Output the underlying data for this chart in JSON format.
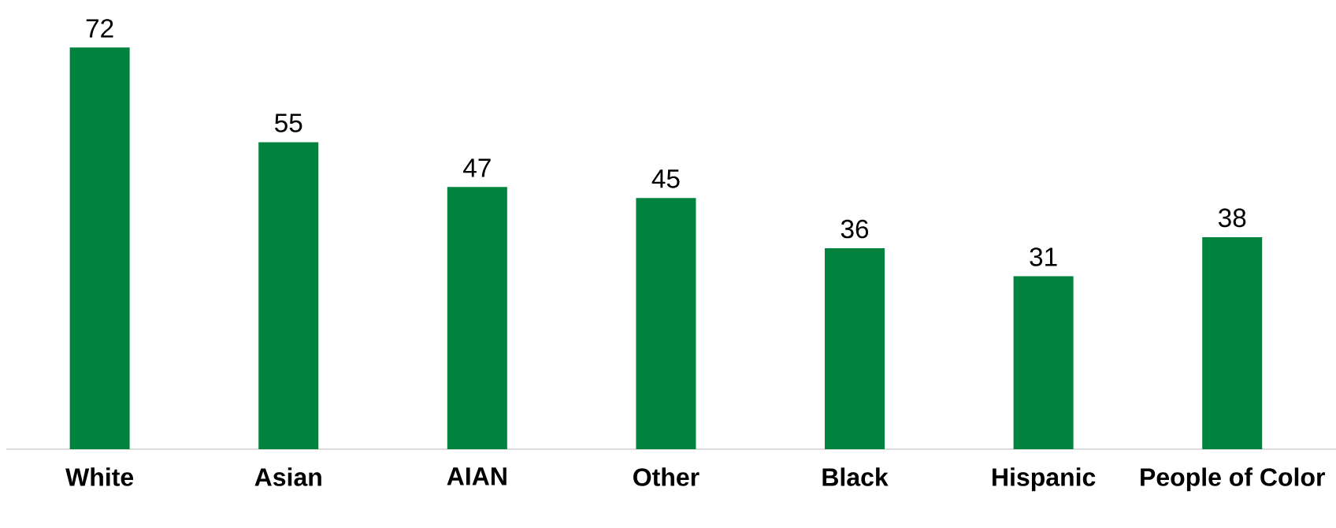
{
  "chart_data": {
    "type": "bar",
    "categories": [
      "White",
      "Asian",
      "AIAN",
      "Other",
      "Black",
      "Hispanic",
      "People of Color"
    ],
    "values": [
      72,
      55,
      47,
      45,
      36,
      31,
      38
    ],
    "color": "#00843d",
    "data_labels": true
  }
}
